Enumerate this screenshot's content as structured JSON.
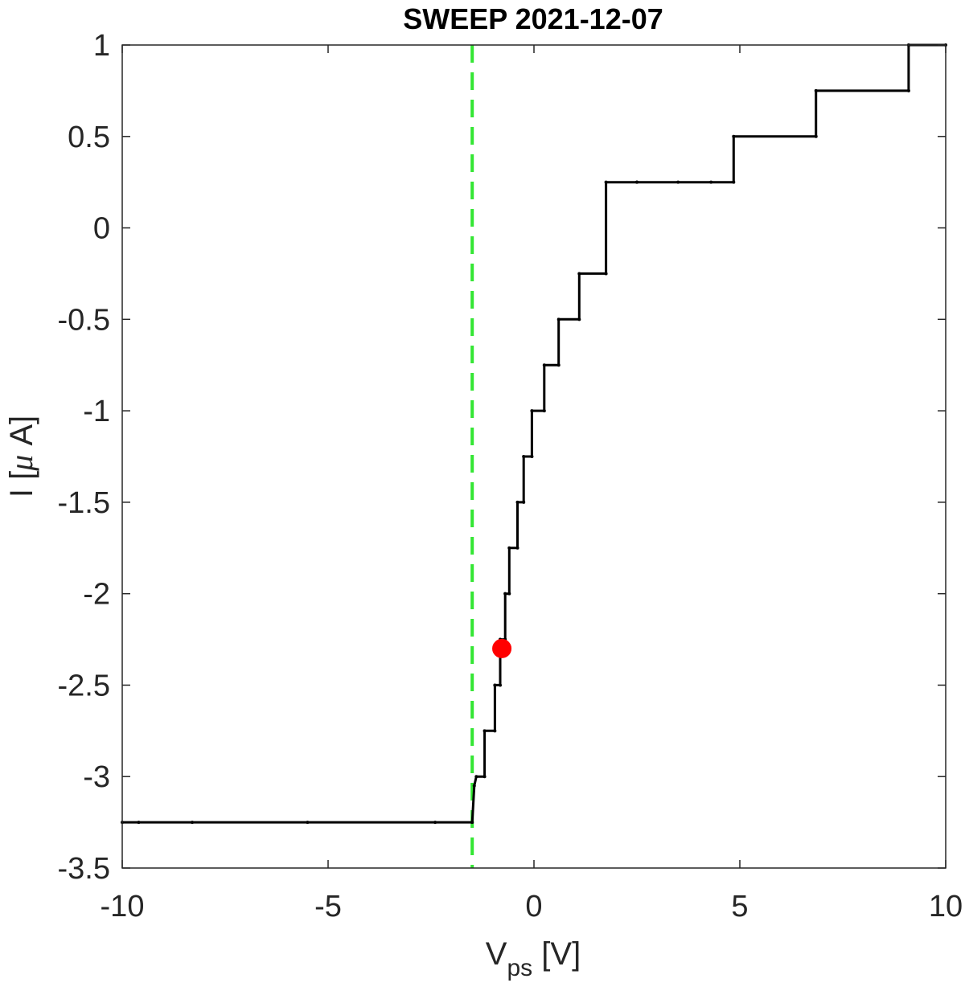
{
  "chart_data": {
    "type": "line",
    "title": "SWEEP 2021-12-07",
    "xlabel": {
      "main": "V",
      "sub": "ps",
      "unit": " [V]"
    },
    "ylabel": {
      "prefix": "I [",
      "greek": "μ",
      "suffix": " A]"
    },
    "xlim": [
      -10,
      10
    ],
    "ylim": [
      -3.5,
      1
    ],
    "xticks": [
      -10,
      -5,
      0,
      5,
      10
    ],
    "yticks": [
      -3.5,
      -3,
      -2.5,
      -2,
      -1.5,
      -1,
      -0.5,
      0,
      0.5,
      1
    ],
    "xtick_labels": [
      "-10",
      "-5",
      "0",
      "5",
      "10"
    ],
    "ytick_labels": [
      "-3.5",
      "-3",
      "-2.5",
      "-2",
      "-1.5",
      "-1",
      "-0.5",
      "0",
      "0.5",
      "1"
    ],
    "grid": false,
    "series": [
      {
        "color": "#000000",
        "style": "solid",
        "x": [
          -10,
          -9.6,
          -8.3,
          -5.5,
          -2.4,
          -1.5,
          -1.45,
          -1.4,
          -1.2,
          -1.2,
          -0.95,
          -0.95,
          -0.82,
          -0.82,
          -0.7,
          -0.7,
          -0.6,
          -0.6,
          -0.4,
          -0.4,
          -0.25,
          -0.25,
          -0.05,
          -0.05,
          0.25,
          0.25,
          0.6,
          0.6,
          1.1,
          1.1,
          1.75,
          1.75,
          2.5,
          2.5,
          3.5,
          4.3,
          4.85,
          4.85,
          6.85,
          6.85,
          9.1,
          9.1,
          10
        ],
        "y": [
          -3.25,
          -3.25,
          -3.25,
          -3.25,
          -3.25,
          -3.25,
          -3.05,
          -3.0,
          -3.0,
          -2.75,
          -2.75,
          -2.5,
          -2.5,
          -2.25,
          -2.25,
          -2.0,
          -2.0,
          -1.75,
          -1.75,
          -1.5,
          -1.5,
          -1.25,
          -1.25,
          -1.0,
          -1.0,
          -0.75,
          -0.75,
          -0.5,
          -0.5,
          -0.25,
          -0.25,
          0.25,
          0.25,
          0.25,
          0.25,
          0.25,
          0.25,
          0.5,
          0.5,
          0.75,
          0.75,
          1.0,
          1.0
        ]
      }
    ],
    "vline": {
      "x": -1.5,
      "color": "#33e633",
      "style": "dashed"
    },
    "marker": {
      "x": -0.78,
      "y": -2.3,
      "color": "#ff0000"
    }
  }
}
